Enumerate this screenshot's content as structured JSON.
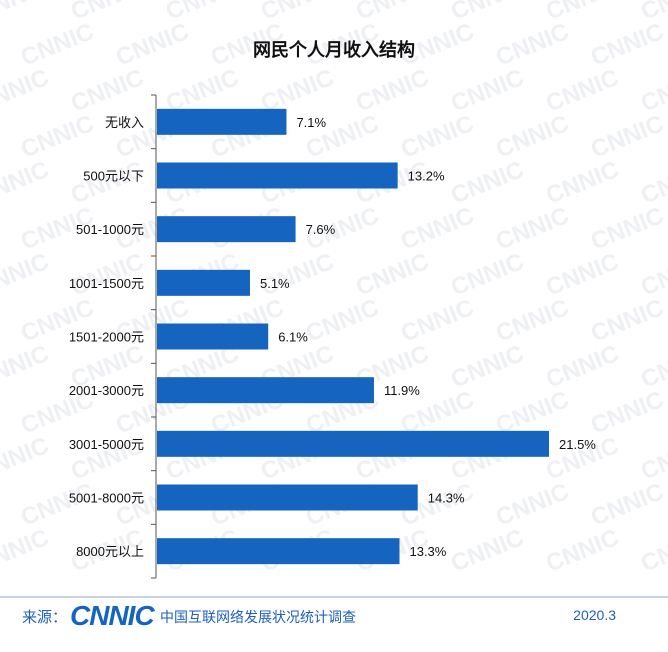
{
  "title": "网民个人月收入结构",
  "watermark": "CNNIC",
  "footer": {
    "source_label": "来源：",
    "logo": "CNNIC",
    "org": "中国互联网络发展状况统计调查",
    "date": "2020.3"
  },
  "colors": {
    "bar": "#1565c0",
    "accent": "#1e5fbf"
  },
  "chart_data": {
    "type": "bar",
    "orientation": "horizontal",
    "title": "网民个人月收入结构",
    "categories": [
      "无收入",
      "500元以下",
      "501-1000元",
      "1001-1500元",
      "1501-2000元",
      "2001-3000元",
      "3001-5000元",
      "5001-8000元",
      "8000元以上"
    ],
    "values": [
      7.1,
      13.2,
      7.6,
      5.1,
      6.1,
      11.9,
      21.5,
      14.3,
      13.3
    ],
    "value_labels": [
      "7.1%",
      "13.2%",
      "7.6%",
      "5.1%",
      "6.1%",
      "11.9%",
      "21.5%",
      "14.3%",
      "13.3%"
    ],
    "xlim": [
      0,
      21.5
    ],
    "grid": false,
    "legend": "none"
  }
}
